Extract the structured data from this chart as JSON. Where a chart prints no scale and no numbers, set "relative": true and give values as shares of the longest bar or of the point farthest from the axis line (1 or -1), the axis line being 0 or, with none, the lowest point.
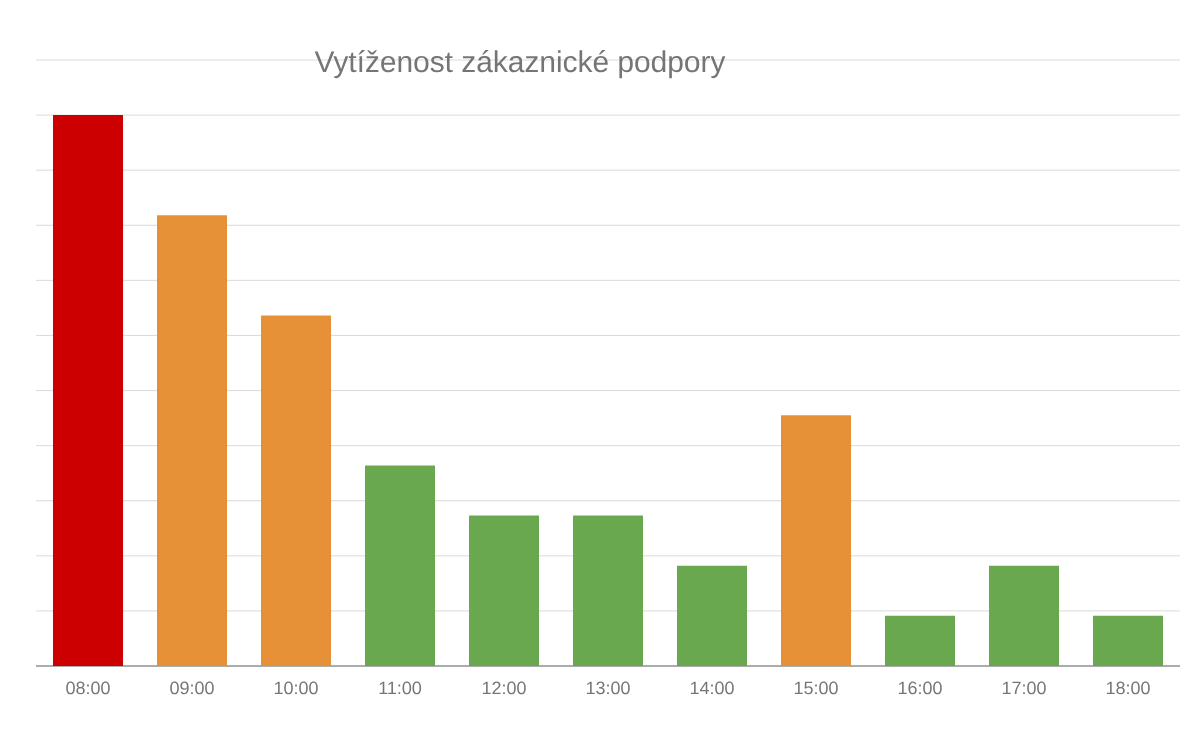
{
  "chart_data": {
    "type": "bar",
    "title": "Vytíženost zákaznické podpory",
    "categories": [
      "08:00",
      "09:00",
      "10:00",
      "11:00",
      "12:00",
      "13:00",
      "14:00",
      "15:00",
      "16:00",
      "17:00",
      "18:00"
    ],
    "values": [
      1,
      0.818,
      0.636,
      0.364,
      0.273,
      0.273,
      0.182,
      0.455,
      0.091,
      0.182,
      0.091
    ],
    "colors": [
      "#cc0000",
      "#e69138",
      "#e69138",
      "#6aa84f",
      "#6aa84f",
      "#6aa84f",
      "#6aa84f",
      "#e69138",
      "#6aa84f",
      "#6aa84f",
      "#6aa84f"
    ],
    "relative": true,
    "grid": true
  }
}
